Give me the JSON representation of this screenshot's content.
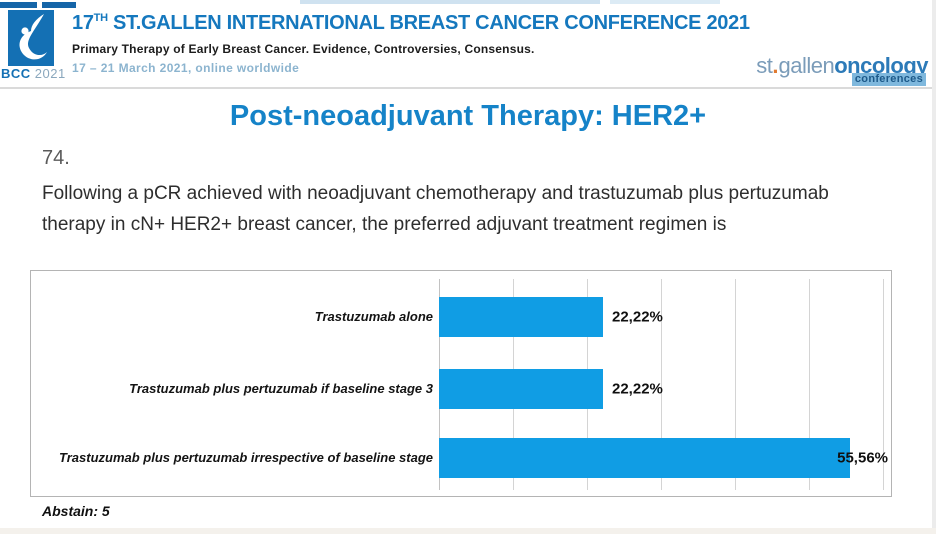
{
  "header": {
    "logo": {
      "bcc": "BCC",
      "year": "2021"
    },
    "title_num": "17",
    "title_sup": "TH",
    "title_rest": " ST.GALLEN INTERNATIONAL BREAST CANCER CONFERENCE 2021",
    "subtitle": "Primary Therapy of Early Breast Cancer. Evidence, Controversies, Consensus.",
    "dates": "17 – 21 March 2021, online worldwide",
    "right_logo": {
      "st": "st",
      "dot": ".",
      "gallen": "gallen",
      "oncology": "oncology",
      "conferences": "conferences"
    }
  },
  "slide": {
    "title": "Post-neoadjuvant Therapy: HER2+",
    "question_number": "74.",
    "question": "Following a pCR achieved with neoadjuvant chemotherapy and trastuzumab plus pertuzumab therapy in cN+ HER2+ breast cancer, the preferred adjuvant treatment regimen is",
    "abstain": "Abstain: 5"
  },
  "chart_data": {
    "type": "bar",
    "orientation": "horizontal",
    "categories": [
      "Trastuzumab alone",
      "Trastuzumab plus pertuzumab if baseline stage 3",
      "Trastuzumab plus pertuzumab irrespective of baseline stage"
    ],
    "values": [
      22.22,
      22.22,
      55.56
    ],
    "value_labels": [
      "22,22%",
      "22,22%",
      "55,56%"
    ],
    "xlim": [
      0,
      60
    ],
    "gridline_step_percent": 10,
    "grid": true,
    "legend": false,
    "bar_color": "#109de4"
  },
  "colors": {
    "title_blue": "#1583c8",
    "header_blue": "#1578be",
    "date_blue": "#8cb4cf",
    "logo_blue": "#1470b4",
    "bar_blue": "#109de4"
  }
}
